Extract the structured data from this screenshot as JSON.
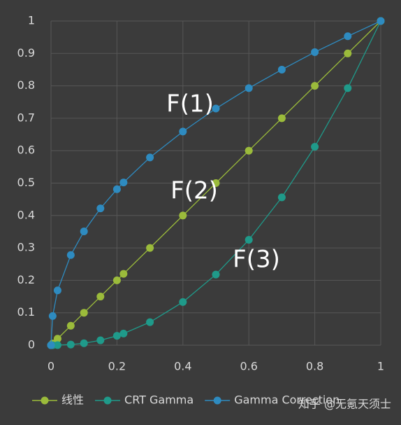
{
  "chart_data": {
    "type": "line",
    "x": [
      0,
      0.005,
      0.02,
      0.06,
      0.1,
      0.15,
      0.2,
      0.22,
      0.3,
      0.4,
      0.5,
      0.6,
      0.7,
      0.8,
      0.9,
      1
    ],
    "series": [
      {
        "name": "线性",
        "color": "#9bbb3b",
        "values": [
          0,
          0.005,
          0.02,
          0.06,
          0.1,
          0.15,
          0.2,
          0.22,
          0.3,
          0.4,
          0.5,
          0.6,
          0.7,
          0.8,
          0.9,
          1
        ]
      },
      {
        "name": "CRT Gamma",
        "color": "#1f9a8a",
        "values": [
          0,
          0,
          0.0002,
          0.002,
          0.006,
          0.015,
          0.029,
          0.036,
          0.071,
          0.133,
          0.218,
          0.325,
          0.456,
          0.612,
          0.793,
          1
        ]
      },
      {
        "name": "Gamma Correction",
        "color": "#2e8bc0",
        "values": [
          0,
          0.09,
          0.169,
          0.278,
          0.351,
          0.422,
          0.481,
          0.502,
          0.579,
          0.659,
          0.73,
          0.793,
          0.85,
          0.904,
          0.953,
          1
        ]
      }
    ],
    "xlim": [
      0,
      1
    ],
    "xticks": [
      0,
      0.2,
      0.4,
      0.6,
      0.8,
      1
    ],
    "ylim": [
      0,
      1
    ],
    "yticks": [
      0,
      0.1,
      0.2,
      0.3,
      0.4,
      0.5,
      0.6,
      0.7,
      0.8,
      0.9,
      1
    ],
    "grid": true,
    "legend": "bottom",
    "annotations": [
      "F(1)",
      "F(2)",
      "F(3)"
    ],
    "watermark": "知乎 @无氪天须士"
  }
}
